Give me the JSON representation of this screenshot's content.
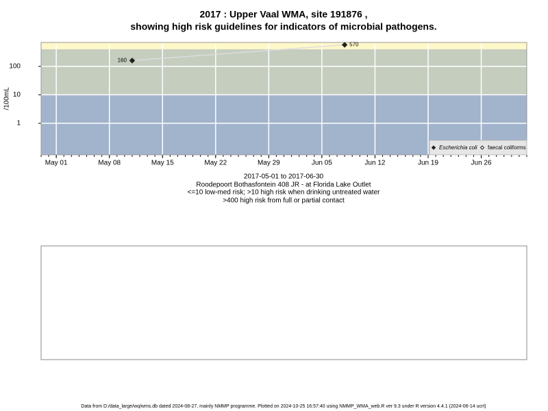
{
  "chart_data": {
    "type": "line",
    "title": [
      "2017 : Upper Vaal WMA, site 191876 ,",
      "showing high risk guidelines for indicators of microbial pathogens."
    ],
    "y_label": "/100mL",
    "notes": [
      "2017-05-01 to 2017-06-30",
      "Roodepoort Bothasfontein 408 JR - at Florida Lake Outlet",
      "<=10 low-med risk; >10 high risk when drinking untreated water",
      ">400 high risk from full or partial contact"
    ],
    "footer": "Data from D:/data_large/wq/wms.db dated 2024-08-27, mainly NMMP programme. Plotted on 2024-10-25 16:57:40 using NMMP_WMA_web.R ver 9.3 under R version 4.4.1 (2024-06-14 ucrt)",
    "x": [
      "2017-05-11",
      "2017-06-08"
    ],
    "series": [
      {
        "name": "Escherichia coli",
        "color": "#222222",
        "values": [
          160,
          570
        ]
      },
      {
        "name": "faecal coliforms",
        "color": "#222222",
        "values": [
          null,
          null
        ]
      }
    ],
    "xlim": [
      "2017-04-29",
      "2017-07-02"
    ],
    "xticks": [
      {
        "value": "2017-05-01",
        "label": "May 01"
      },
      {
        "value": "2017-05-08",
        "label": "May 08"
      },
      {
        "value": "2017-05-15",
        "label": "May 15"
      },
      {
        "value": "2017-05-22",
        "label": "May 22"
      },
      {
        "value": "2017-05-29",
        "label": "May 29"
      },
      {
        "value": "2017-06-05",
        "label": "Jun 05"
      },
      {
        "value": "2017-06-12",
        "label": "Jun 12"
      },
      {
        "value": "2017-06-19",
        "label": "Jun 19"
      },
      {
        "value": "2017-06-26",
        "label": "Jun 26"
      }
    ],
    "ylim": [
      0.078,
      690
    ],
    "yticks": [
      1,
      10,
      100
    ],
    "log_y": true,
    "grid": true,
    "thresholds": [
      10,
      400
    ],
    "band_colors": [
      "#a2b4cc",
      "#c5cdbf",
      "#fff8c8"
    ],
    "line_color": "#dddddd",
    "legend": "bottom-right"
  }
}
